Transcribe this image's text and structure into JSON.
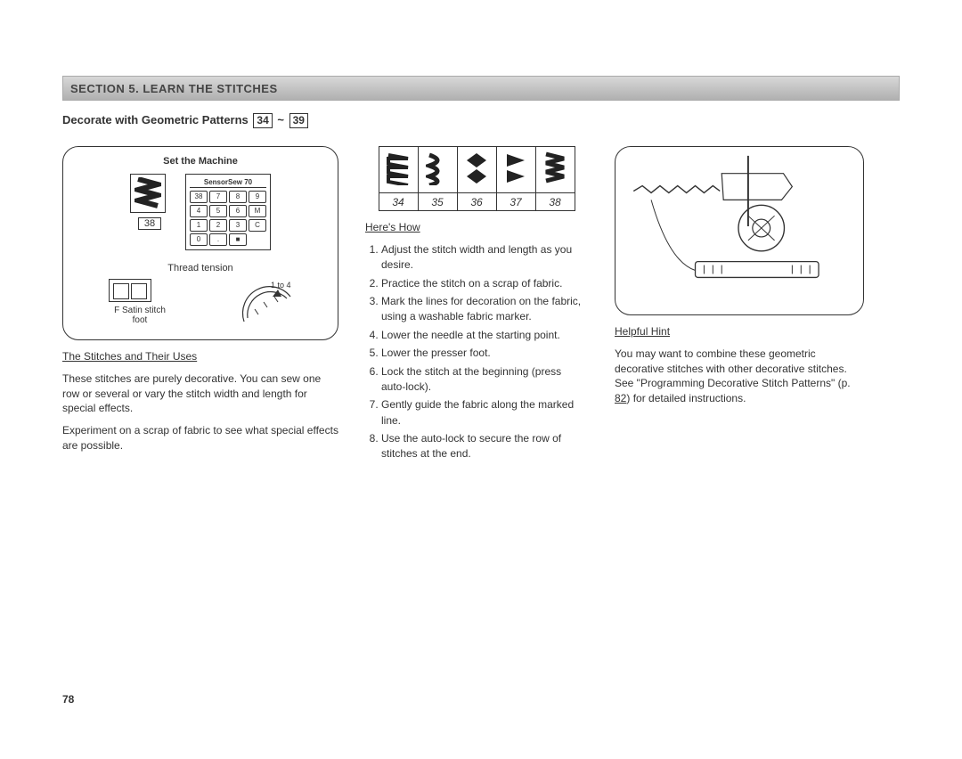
{
  "banner": "SECTION 5.    LEARN THE STITCHES",
  "subtitle_prefix": "Decorate with Geometric Patterns   ",
  "range_from": "34",
  "range_to": "39",
  "range_tilde": "~",
  "panel1": {
    "title": "Set the Machine",
    "keypad_label": "SensorSew 70",
    "selected_num": "38",
    "tension_label": "Thread tension",
    "tension_range": "1 to 4",
    "foot_label": "F   Satin stitch foot"
  },
  "keys": [
    "38",
    "7",
    "8",
    "9",
    "4",
    "5",
    "6",
    "M",
    "1",
    "2",
    "3",
    "C",
    "0",
    ".",
    "■"
  ],
  "left": {
    "heading": "The Stitches and Their Uses",
    "p1": "These stitches are purely decorative. You can sew one row or several or vary the stitch width and length for special effects.",
    "p2": "Experiment on a scrap of fabric to see what special effects are possible."
  },
  "mid": {
    "nums": [
      "34",
      "35",
      "36",
      "37",
      "38"
    ],
    "heading": "Here's How",
    "steps": [
      "Adjust the stitch width and length as you desire.",
      "Practice the stitch on a scrap of fabric.",
      "Mark the lines for decoration on the fabric, using a washable fabric marker.",
      "Lower the needle at the starting point.",
      "Lower the presser foot.",
      "Lock the stitch at the beginning (press auto-lock).",
      "Gently guide the fabric along the marked line.",
      "Use the auto-lock to secure the row of stitches at the end."
    ]
  },
  "right": {
    "heading": "Helpful Hint",
    "p1_a": "You may want to combine these geometric decorative stitches with other decorative stitches.   See  \"Programming Decorative Stitch Patterns\" (p. ",
    "p1_page": "82",
    "p1_b": ") for detailed instructions."
  },
  "pagenum": "78"
}
